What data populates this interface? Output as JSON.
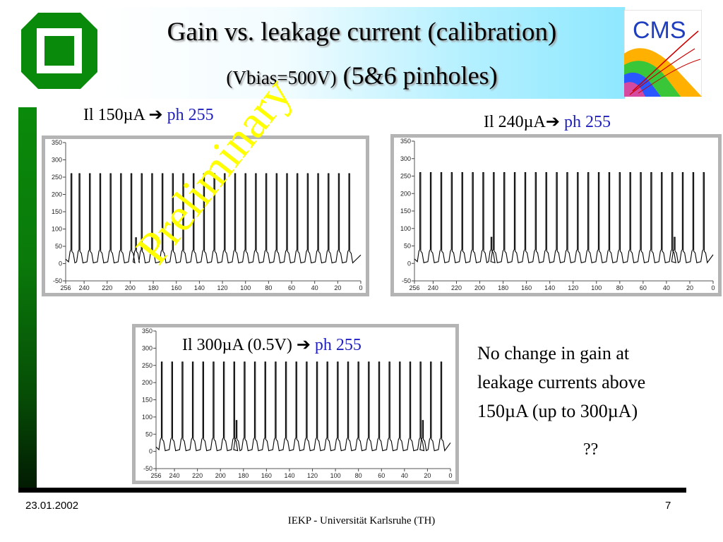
{
  "title": {
    "line1": "Gain vs. leakage current (calibration)",
    "line2_small": "(Vbias=500V)",
    "line2_big": "(5&6 pinholes)"
  },
  "logo": {
    "cms_text": "CMS"
  },
  "watermark": "Preliminary",
  "colors": {
    "title_band": "#8ee8ff",
    "green_bar": "#0a8a0a",
    "label_blue": "#1f1fbf",
    "watermark": "#ffff00",
    "panel_frame": "#b4b4b4"
  },
  "labels": {
    "chart1": {
      "il": "Il 150µA",
      "arrow": "➔",
      "ph": "ph 255"
    },
    "chart2": {
      "il": "Il 240µA",
      "arrow": "➔",
      "ph": "ph 255"
    },
    "chart3": {
      "il": "Il 300µA (0.5V)",
      "arrow": "➔",
      "ph": "ph 255"
    }
  },
  "note": {
    "line1": "No change in gain at",
    "line2": "leakage currents above",
    "line3": "150µA (up to 300µA)",
    "question": "??"
  },
  "footer": {
    "date": "23.01.2002",
    "page": "7",
    "institute": "IEKP  - Universität Karlsruhe (TH)"
  },
  "chart_data": [
    {
      "type": "line",
      "panel": "il-150",
      "title": "",
      "xlabel": "",
      "ylabel": "",
      "xlim": [
        256,
        0
      ],
      "ylim": [
        -50,
        350
      ],
      "xticks": [
        "256",
        "240",
        "220",
        "200",
        "180",
        "160",
        "140",
        "120",
        "100",
        "80",
        "60",
        "40",
        "20",
        "0"
      ],
      "yticks": [
        "350",
        "300",
        "250",
        "200",
        "150",
        "100",
        "50",
        "0",
        "-50"
      ],
      "baseline": 5,
      "spike_height": 260,
      "grid": false,
      "spikes_x": [
        251,
        244,
        235,
        226,
        217,
        208,
        199,
        190,
        181,
        172,
        163,
        154,
        145,
        136,
        127,
        118,
        109,
        100,
        91,
        82,
        73,
        64,
        55,
        46,
        37,
        28,
        19,
        10
      ],
      "small_pulses_x": [
        195
      ],
      "small_pulse_height": 75
    },
    {
      "type": "line",
      "panel": "il-240",
      "title": "",
      "xlabel": "",
      "ylabel": "",
      "xlim": [
        256,
        0
      ],
      "ylim": [
        -50,
        350
      ],
      "xticks": [
        "256",
        "240",
        "220",
        "200",
        "180",
        "160",
        "140",
        "120",
        "100",
        "80",
        "60",
        "40",
        "20",
        "0"
      ],
      "yticks": [
        "350",
        "300",
        "250",
        "200",
        "150",
        "100",
        "50",
        "0",
        "-50"
      ],
      "baseline": 5,
      "spike_height": 260,
      "grid": false,
      "spikes_x": [
        251,
        242,
        233,
        224,
        215,
        206,
        197,
        188,
        179,
        170,
        161,
        152,
        143,
        134,
        125,
        116,
        107,
        98,
        89,
        80,
        71,
        62,
        53,
        44,
        35,
        26,
        17,
        8
      ],
      "small_pulses_x": [
        190,
        33
      ],
      "small_pulse_height": 75
    },
    {
      "type": "line",
      "panel": "il-300",
      "title": "",
      "xlabel": "",
      "ylabel": "",
      "xlim": [
        256,
        0
      ],
      "ylim": [
        -50,
        350
      ],
      "xticks": [
        "256",
        "240",
        "220",
        "200",
        "180",
        "160",
        "140",
        "120",
        "100",
        "80",
        "60",
        "40",
        "20",
        "0"
      ],
      "yticks": [
        "350",
        "300",
        "250",
        "200",
        "150",
        "100",
        "50",
        "0",
        "-50"
      ],
      "baseline": 5,
      "spike_height": 260,
      "grid": false,
      "spikes_x": [
        251,
        242,
        233,
        224,
        215,
        206,
        197,
        188,
        179,
        170,
        161,
        152,
        143,
        134,
        125,
        116,
        107,
        98,
        89,
        80,
        71,
        62,
        53,
        44,
        35,
        26,
        17,
        8
      ],
      "small_pulses_x": [
        186,
        24
      ],
      "small_pulse_height": 90
    }
  ]
}
